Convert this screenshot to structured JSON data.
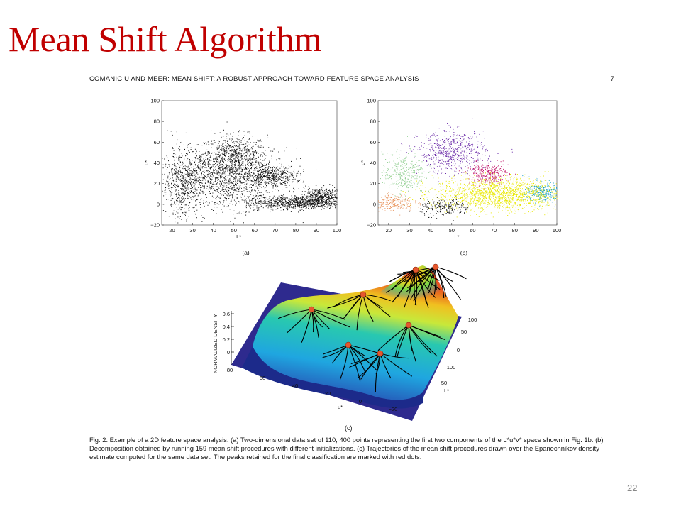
{
  "slide": {
    "title": "Mean Shift Algorithm",
    "number": "22"
  },
  "paper": {
    "running_header": "COMANICIU AND MEER:  MEAN SHIFT: A ROBUST APPROACH TOWARD FEATURE SPACE ANALYSIS",
    "page_number": "7",
    "caption": "Fig. 2. Example of a 2D feature space analysis. (a) Two-dimensional data set of 110, 400 points representing the first two components of the L*u*v* space shown in Fig. 1b. (b) Decomposition obtained by running 159 mean shift procedures with different initializations. (c) Trajectories of the mean shift procedures drawn over the Epanechnikov density estimate computed for the same data set. The peaks retained for the final classification are marked with red dots."
  },
  "chart_data": [
    {
      "type": "scatter",
      "panel_label": "(a)",
      "xlabel": "L*",
      "ylabel": "u*",
      "xlim": [
        15,
        100
      ],
      "ylim": [
        -20,
        100
      ],
      "xticks": [
        20,
        30,
        40,
        50,
        60,
        70,
        80,
        90,
        100
      ],
      "yticks": [
        -20,
        0,
        20,
        40,
        60,
        80,
        100
      ],
      "grid": false,
      "marker_color": "#111111",
      "clusters": [
        {
          "x": 50,
          "y": 47,
          "sx": 8,
          "sy": 10
        },
        {
          "x": 68,
          "y": 28,
          "sx": 6,
          "sy": 5
        },
        {
          "x": 92,
          "y": 8,
          "sx": 5,
          "sy": 4
        },
        {
          "x": 80,
          "y": 2,
          "sx": 12,
          "sy": 3
        },
        {
          "x": 45,
          "y": 25,
          "sx": 15,
          "sy": 14
        },
        {
          "x": 25,
          "y": 20,
          "sx": 5,
          "sy": 18
        }
      ]
    },
    {
      "type": "scatter",
      "panel_label": "(b)",
      "xlabel": "L*",
      "ylabel": "u*",
      "xlim": [
        15,
        100
      ],
      "ylim": [
        -20,
        100
      ],
      "xticks": [
        20,
        30,
        40,
        50,
        60,
        70,
        80,
        90,
        100
      ],
      "yticks": [
        -20,
        0,
        20,
        40,
        60,
        80,
        100
      ],
      "grid": false,
      "clusters": [
        {
          "x": 50,
          "y": 50,
          "sx": 8,
          "sy": 10,
          "color": "#6a2aa8"
        },
        {
          "x": 67,
          "y": 30,
          "sx": 5,
          "sy": 5,
          "color": "#c2186a"
        },
        {
          "x": 93,
          "y": 12,
          "sx": 4,
          "sy": 5,
          "color": "#1aa0c8"
        },
        {
          "x": 72,
          "y": 10,
          "sx": 15,
          "sy": 8,
          "color": "#e8e800"
        },
        {
          "x": 27,
          "y": 30,
          "sx": 5,
          "sy": 10,
          "color": "#8fce8f"
        },
        {
          "x": 22,
          "y": 2,
          "sx": 5,
          "sy": 4,
          "color": "#e8925a"
        },
        {
          "x": 47,
          "y": -3,
          "sx": 6,
          "sy": 4,
          "color": "#111111"
        }
      ]
    },
    {
      "type": "surface",
      "panel_label": "(c)",
      "zlabel": "NORMALIZED DENSITY",
      "zticks": [
        "0",
        "0.2",
        "0.4",
        "0.6"
      ],
      "u_label": "u*",
      "u_ticks": [
        "80",
        "60",
        "40",
        "20",
        "0",
        "−20"
      ],
      "l_label": "L*",
      "l_ticks": [
        "100",
        "50",
        "0",
        "100",
        "50"
      ],
      "peak_marker_color": "#e4572e",
      "peak_count": 7
    }
  ]
}
